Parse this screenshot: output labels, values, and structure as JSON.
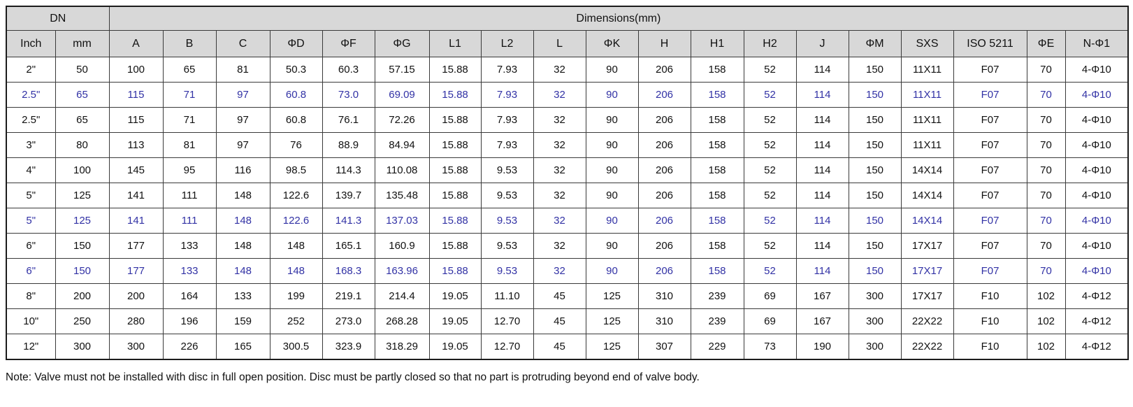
{
  "header": {
    "dn_label": "DN",
    "dimensions_label": "Dimensions(mm)",
    "columns": [
      "Inch",
      "mm",
      "A",
      "B",
      "C",
      "ΦD",
      "ΦF",
      "ΦG",
      "L1",
      "L2",
      "L",
      "ΦK",
      "H",
      "H1",
      "H2",
      "J",
      "ΦM",
      "SXS",
      "ISO 5211",
      "ΦE",
      "N-Φ1"
    ]
  },
  "rows": [
    {
      "highlight": false,
      "cells": [
        "2\"",
        "50",
        "100",
        "65",
        "81",
        "50.3",
        "60.3",
        "57.15",
        "15.88",
        "7.93",
        "32",
        "90",
        "206",
        "158",
        "52",
        "114",
        "150",
        "11X11",
        "F07",
        "70",
        "4-Φ10"
      ]
    },
    {
      "highlight": true,
      "cells": [
        "2.5\"",
        "65",
        "115",
        "71",
        "97",
        "60.8",
        "73.0",
        "69.09",
        "15.88",
        "7.93",
        "32",
        "90",
        "206",
        "158",
        "52",
        "114",
        "150",
        "11X11",
        "F07",
        "70",
        "4-Φ10"
      ]
    },
    {
      "highlight": false,
      "cells": [
        "2.5\"",
        "65",
        "115",
        "71",
        "97",
        "60.8",
        "76.1",
        "72.26",
        "15.88",
        "7.93",
        "32",
        "90",
        "206",
        "158",
        "52",
        "114",
        "150",
        "11X11",
        "F07",
        "70",
        "4-Φ10"
      ]
    },
    {
      "highlight": false,
      "cells": [
        "3\"",
        "80",
        "113",
        "81",
        "97",
        "76",
        "88.9",
        "84.94",
        "15.88",
        "7.93",
        "32",
        "90",
        "206",
        "158",
        "52",
        "114",
        "150",
        "11X11",
        "F07",
        "70",
        "4-Φ10"
      ]
    },
    {
      "highlight": false,
      "cells": [
        "4\"",
        "100",
        "145",
        "95",
        "116",
        "98.5",
        "114.3",
        "110.08",
        "15.88",
        "9.53",
        "32",
        "90",
        "206",
        "158",
        "52",
        "114",
        "150",
        "14X14",
        "F07",
        "70",
        "4-Φ10"
      ]
    },
    {
      "highlight": false,
      "cells": [
        "5\"",
        "125",
        "141",
        "111",
        "148",
        "122.6",
        "139.7",
        "135.48",
        "15.88",
        "9.53",
        "32",
        "90",
        "206",
        "158",
        "52",
        "114",
        "150",
        "14X14",
        "F07",
        "70",
        "4-Φ10"
      ]
    },
    {
      "highlight": true,
      "cells": [
        "5\"",
        "125",
        "141",
        "111",
        "148",
        "122.6",
        "141.3",
        "137.03",
        "15.88",
        "9.53",
        "32",
        "90",
        "206",
        "158",
        "52",
        "114",
        "150",
        "14X14",
        "F07",
        "70",
        "4-Φ10"
      ]
    },
    {
      "highlight": false,
      "cells": [
        "6\"",
        "150",
        "177",
        "133",
        "148",
        "148",
        "165.1",
        "160.9",
        "15.88",
        "9.53",
        "32",
        "90",
        "206",
        "158",
        "52",
        "114",
        "150",
        "17X17",
        "F07",
        "70",
        "4-Φ10"
      ]
    },
    {
      "highlight": true,
      "cells": [
        "6\"",
        "150",
        "177",
        "133",
        "148",
        "148",
        "168.3",
        "163.96",
        "15.88",
        "9.53",
        "32",
        "90",
        "206",
        "158",
        "52",
        "114",
        "150",
        "17X17",
        "F07",
        "70",
        "4-Φ10"
      ]
    },
    {
      "highlight": false,
      "cells": [
        "8\"",
        "200",
        "200",
        "164",
        "133",
        "199",
        "219.1",
        "214.4",
        "19.05",
        "11.10",
        "45",
        "125",
        "310",
        "239",
        "69",
        "167",
        "300",
        "17X17",
        "F10",
        "102",
        "4-Φ12"
      ]
    },
    {
      "highlight": false,
      "cells": [
        "10\"",
        "250",
        "280",
        "196",
        "159",
        "252",
        "273.0",
        "268.28",
        "19.05",
        "12.70",
        "45",
        "125",
        "310",
        "239",
        "69",
        "167",
        "300",
        "22X22",
        "F10",
        "102",
        "4-Φ12"
      ]
    },
    {
      "highlight": false,
      "cells": [
        "12\"",
        "300",
        "300",
        "226",
        "165",
        "300.5",
        "323.9",
        "318.29",
        "19.05",
        "12.70",
        "45",
        "125",
        "307",
        "229",
        "73",
        "190",
        "300",
        "22X22",
        "F10",
        "102",
        "4-Φ12"
      ]
    }
  ],
  "note": "Note: Valve must not be installed with disc in full open position. Disc must be partly closed so that no part is protruding beyond end of valve body.",
  "colors": {
    "highlight_text": "#3232a5",
    "header_bg": "#d8d8d8",
    "border": "#1c1c1c"
  }
}
